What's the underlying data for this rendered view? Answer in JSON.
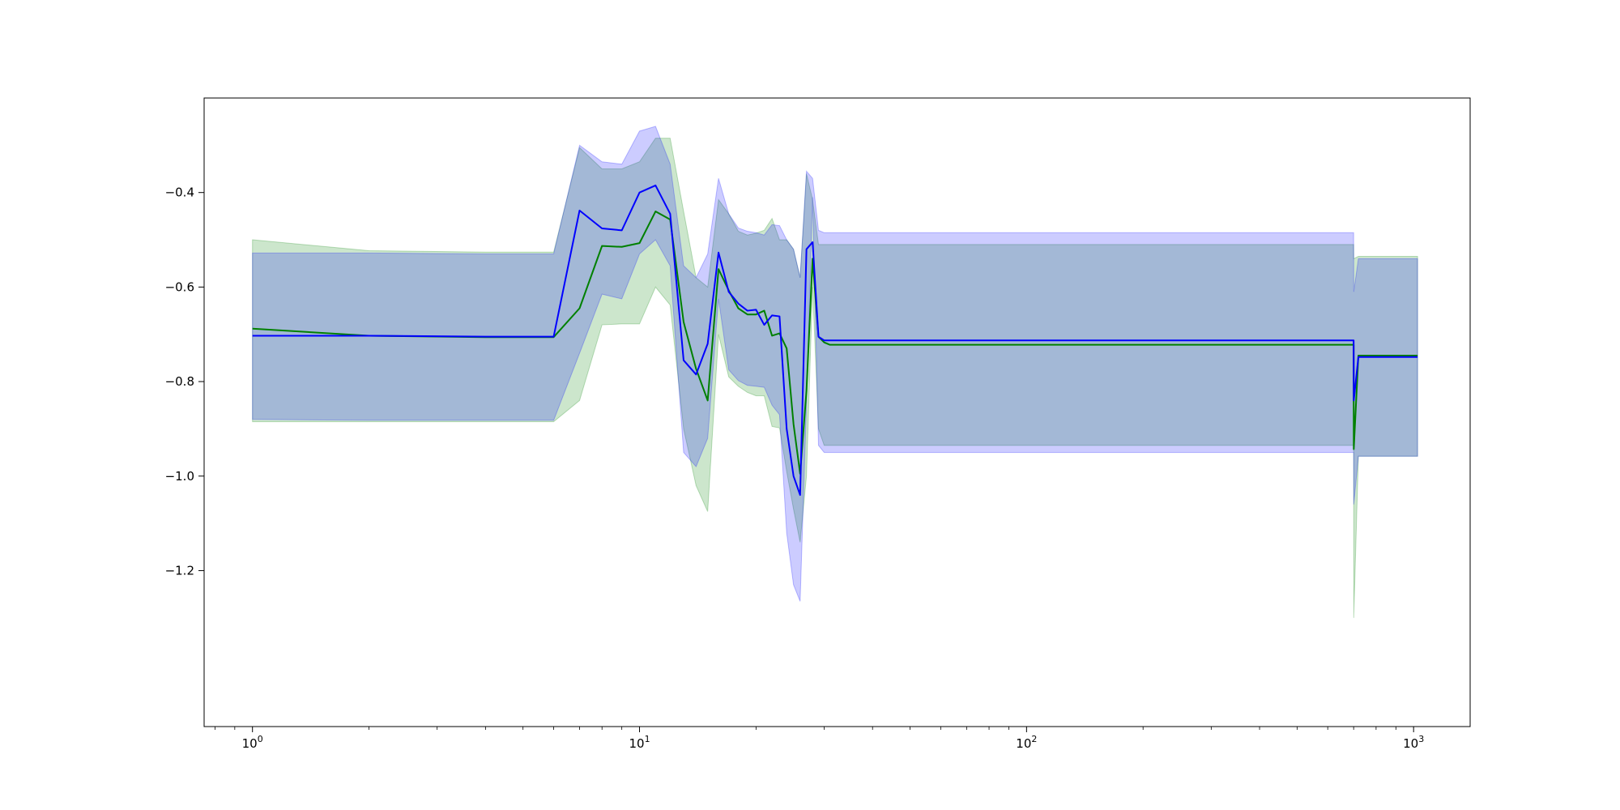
{
  "chart_data": {
    "type": "line",
    "title": "",
    "xlabel": "",
    "ylabel": "",
    "xscale": "log",
    "xlim": [
      0.75,
      1400
    ],
    "ylim": [
      -1.53,
      -0.2
    ],
    "grid": false,
    "legend": "none",
    "x_ticks": [
      {
        "value": 1,
        "base": "10",
        "exp": "0"
      },
      {
        "value": 10,
        "base": "10",
        "exp": "1"
      },
      {
        "value": 100,
        "base": "10",
        "exp": "2"
      },
      {
        "value": 1000,
        "base": "10",
        "exp": "3"
      }
    ],
    "y_ticks": [
      {
        "value": -0.4,
        "label": "−0.4"
      },
      {
        "value": -0.6,
        "label": "−0.6"
      },
      {
        "value": -0.8,
        "label": "−0.8"
      },
      {
        "value": -1.0,
        "label": "−1.0"
      },
      {
        "value": -1.2,
        "label": "−1.2"
      }
    ],
    "series": [
      {
        "color": "#008000",
        "band_color": "#008000",
        "band_opacity": 0.2,
        "x": [
          1,
          2,
          4,
          6,
          7,
          8,
          9,
          10,
          11,
          12,
          13,
          14,
          15,
          16,
          17,
          18,
          19,
          20,
          21,
          22,
          23,
          24,
          25,
          26,
          27,
          28,
          29,
          30,
          31,
          32,
          700,
          700.5,
          720,
          1024
        ],
        "y": [
          -0.688,
          -0.703,
          -0.706,
          -0.706,
          -0.645,
          -0.513,
          -0.515,
          -0.507,
          -0.44,
          -0.457,
          -0.674,
          -0.773,
          -0.84,
          -0.562,
          -0.607,
          -0.645,
          -0.658,
          -0.658,
          -0.65,
          -0.703,
          -0.698,
          -0.73,
          -0.89,
          -0.995,
          -0.82,
          -0.54,
          -0.705,
          -0.717,
          -0.722,
          -0.722,
          -0.722,
          -0.943,
          -0.745,
          -0.745
        ],
        "lower": [
          -0.885,
          -0.885,
          -0.885,
          -0.885,
          -0.84,
          -0.68,
          -0.678,
          -0.678,
          -0.6,
          -0.638,
          -0.9,
          -1.02,
          -1.075,
          -0.7,
          -0.79,
          -0.81,
          -0.823,
          -0.83,
          -0.83,
          -0.895,
          -0.898,
          -0.99,
          -1.07,
          -1.14,
          -1.0,
          -0.6,
          -0.9,
          -0.935,
          -0.935,
          -0.935,
          -0.935,
          -1.3,
          -0.958,
          -0.958
        ],
        "upper": [
          -0.5,
          -0.523,
          -0.526,
          -0.526,
          -0.305,
          -0.35,
          -0.35,
          -0.335,
          -0.285,
          -0.285,
          -0.44,
          -0.58,
          -0.6,
          -0.415,
          -0.445,
          -0.482,
          -0.49,
          -0.486,
          -0.48,
          -0.455,
          -0.5,
          -0.5,
          -0.52,
          -0.58,
          -0.36,
          -0.415,
          -0.51,
          -0.51,
          -0.51,
          -0.51,
          -0.51,
          -0.54,
          -0.535,
          -0.535
        ]
      },
      {
        "color": "#0000ff",
        "band_color": "#0000ff",
        "band_opacity": 0.2,
        "x": [
          1,
          2,
          4,
          6,
          7,
          8,
          9,
          10,
          11,
          12,
          13,
          14,
          15,
          16,
          17,
          18,
          19,
          20,
          21,
          22,
          23,
          24,
          25,
          26,
          27,
          28,
          29,
          30,
          31,
          32,
          700,
          700.5,
          720,
          1024
        ],
        "y": [
          -0.703,
          -0.703,
          -0.705,
          -0.705,
          -0.438,
          -0.476,
          -0.48,
          -0.4,
          -0.385,
          -0.445,
          -0.755,
          -0.785,
          -0.72,
          -0.527,
          -0.61,
          -0.635,
          -0.65,
          -0.648,
          -0.68,
          -0.66,
          -0.662,
          -0.9,
          -1.0,
          -1.04,
          -0.52,
          -0.505,
          -0.705,
          -0.713,
          -0.713,
          -0.713,
          -0.713,
          -0.84,
          -0.748,
          -0.748
        ],
        "lower": [
          -0.88,
          -0.882,
          -0.882,
          -0.882,
          -0.74,
          -0.615,
          -0.625,
          -0.53,
          -0.5,
          -0.555,
          -0.95,
          -0.98,
          -0.92,
          -0.625,
          -0.775,
          -0.798,
          -0.808,
          -0.81,
          -0.812,
          -0.85,
          -0.87,
          -1.12,
          -1.23,
          -1.265,
          -0.85,
          -0.41,
          -0.935,
          -0.95,
          -0.95,
          -0.95,
          -0.95,
          -1.06,
          -0.958,
          -0.958
        ],
        "upper": [
          -0.528,
          -0.528,
          -0.53,
          -0.53,
          -0.3,
          -0.335,
          -0.34,
          -0.27,
          -0.26,
          -0.34,
          -0.555,
          -0.58,
          -0.53,
          -0.37,
          -0.445,
          -0.475,
          -0.482,
          -0.485,
          -0.49,
          -0.468,
          -0.47,
          -0.5,
          -0.52,
          -0.58,
          -0.355,
          -0.37,
          -0.48,
          -0.485,
          -0.485,
          -0.485,
          -0.485,
          -0.61,
          -0.54,
          -0.54
        ]
      }
    ]
  }
}
